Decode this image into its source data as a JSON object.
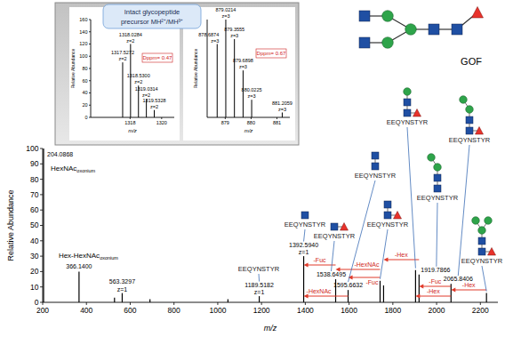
{
  "chart_data": [
    {
      "type": "stem",
      "color": "#000000",
      "xlabel": "m/z",
      "ylabel": "Relative Abundance",
      "x": [
        204.0868,
        366.14,
        528.2,
        563.3297,
        690.3,
        1046.5,
        1189.5182,
        1392.594,
        1538.6495,
        1595.6632,
        1741.7,
        1757.7,
        1903.78,
        1919.7866,
        2065.8406,
        2227.89
      ],
      "values": [
        100,
        20,
        3,
        6,
        2,
        2,
        4,
        30,
        15,
        8,
        14,
        11,
        21,
        18,
        12,
        6
      ],
      "peak_labels": [
        "204.0868",
        "366.1400",
        null,
        "563.3297",
        null,
        null,
        "1189.5182",
        "1392.5940",
        "1538.6495",
        "1595.6632",
        null,
        null,
        null,
        "1919.7866",
        "2065.8406",
        null
      ],
      "charges": [
        null,
        null,
        null,
        "z=1",
        null,
        null,
        "z=1",
        "z=1",
        null,
        null,
        null,
        null,
        null,
        null,
        null,
        null
      ],
      "xlim": [
        200,
        2280
      ],
      "ylim": [
        0,
        100
      ],
      "xticks": [
        200,
        400,
        600,
        800,
        1000,
        1200,
        1400,
        1600,
        1800,
        2000,
        2200
      ],
      "yticks": [
        0,
        10,
        20,
        30,
        40,
        50,
        60,
        70,
        80,
        90,
        100
      ],
      "ion_labels": [
        {
          "x": 204.0868,
          "text": "HexNAc",
          "subscript": "oxonium"
        },
        {
          "x": 366.14,
          "text": "Hex-HexNAc",
          "subscript": "oxonium"
        }
      ],
      "fragments": [
        {
          "x": 1189.5182,
          "text": "EEQYNSTYR"
        },
        {
          "x": 1392.594,
          "text": "EEQYNSTYR"
        },
        {
          "x": 1538.6495,
          "text": "EEQYNSTYR"
        },
        {
          "x": 1595.6632,
          "text": "EEQYNSTYR"
        },
        {
          "x": 1741.7,
          "text": "EEQYNSTYR"
        },
        {
          "x": 1903.78,
          "text": "EEQYNSTYR"
        },
        {
          "x": 1919.7866,
          "text": "EEQYNSTYR"
        },
        {
          "x": 2065.8406,
          "text": "EEQYNSTYR"
        },
        {
          "x": 2227.89,
          "text": "EEQYNSTYR"
        }
      ],
      "losses": [
        {
          "text": "-Fuc",
          "from": 1538.6495,
          "to": 1392.594
        },
        {
          "text": "-HexNAc",
          "from": 1741.7,
          "to": 1538.6495
        },
        {
          "text": "-Fuc",
          "from": 1741.7,
          "to": 1595.6632
        },
        {
          "text": "-HexNAc",
          "from": 1595.6632,
          "to": 1392.594
        },
        {
          "text": "-Hex",
          "from": 1919.7866,
          "to": 1757.7
        },
        {
          "text": "-Fuc",
          "from": 2065.8406,
          "to": 1919.7866
        },
        {
          "text": "-Hex",
          "from": 2065.8406,
          "to": 1903.78
        },
        {
          "text": "-Hex",
          "from": 2227.89,
          "to": 2065.8406
        }
      ]
    },
    {
      "type": "stem",
      "color": "#000000",
      "xlabel": "m/z",
      "ylabel": "Relative Abundance",
      "x": [
        1317.5272,
        1318.0284,
        1318.53,
        1319.0314,
        1319.5328
      ],
      "values": [
        90,
        120,
        52,
        30,
        12
      ],
      "peak_labels": [
        "1317.5272",
        "1318.0284",
        "1318.5300",
        "1319.0314",
        "1319.5328"
      ],
      "charges": [
        "z=2",
        "z=2",
        "z=2",
        "z=2",
        "z=2"
      ],
      "xlim": [
        1315.5,
        1320.8
      ],
      "ylim": [
        0,
        160
      ],
      "xticks": [
        1318,
        1320
      ],
      "yticks": [
        0,
        20,
        40,
        60,
        80,
        100,
        120,
        140,
        160
      ],
      "annotation": "Dppm= 0.47"
    },
    {
      "type": "stem",
      "color": "#000000",
      "xlabel": "m/z",
      "ylabel": "Relative Abundance",
      "x": [
        878.6874,
        879.0214,
        879.3555,
        879.6898,
        880.0225,
        881.2059
      ],
      "values": [
        75,
        100,
        80,
        48,
        18,
        5
      ],
      "peak_labels": [
        "878.6874",
        "879.0214",
        "879.3555",
        "879.6898",
        "880.0225",
        "881.2059"
      ],
      "charges": [
        "z=3",
        "z=3",
        "z=3",
        "z=3",
        "z=3",
        "z=3"
      ],
      "xlim": [
        878.3,
        881.5
      ],
      "ylim": [
        0,
        100
      ],
      "xticks": [
        879,
        880,
        881
      ],
      "tick_labels": "x",
      "annotation": "Dppm= 0.67"
    }
  ],
  "inset": {
    "title": [
      "Intact glycopeptide",
      "precursor MH²⁺/MH³⁺"
    ]
  },
  "glycan_key": {
    "label": "GOF"
  }
}
